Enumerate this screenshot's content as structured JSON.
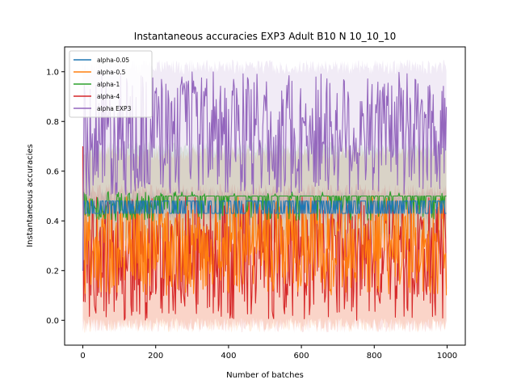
{
  "chart_data": {
    "type": "line",
    "title": "Instantaneous accuracies EXP3 Adult B10 N 10_10_10",
    "xlabel": "Number of batches",
    "ylabel": "Instantaneous accuracies",
    "xlim": [
      -50,
      1050
    ],
    "ylim": [
      -0.1,
      1.1
    ],
    "xticks": [
      0,
      200,
      400,
      600,
      800,
      1000
    ],
    "yticks": [
      0.0,
      0.2,
      0.4,
      0.6,
      0.8,
      1.0
    ],
    "xtick_labels": [
      "0",
      "200",
      "400",
      "600",
      "800",
      "1000"
    ],
    "ytick_labels": [
      "0.0",
      "0.2",
      "0.4",
      "0.6",
      "0.8",
      "1.0"
    ],
    "grid": false,
    "legend_position": "top-left",
    "n_points": 1000,
    "series": [
      {
        "name": "alpha-0.05",
        "color": "#1f77b4",
        "levels": [
          0.43,
          0.48
        ],
        "band": [
          0.38,
          0.53
        ],
        "start": 0.2
      },
      {
        "name": "alpha-0.5",
        "color": "#ff7f0e",
        "levels": [
          0.1,
          0.5
        ],
        "band": [
          -0.05,
          0.7
        ],
        "start": 0.2
      },
      {
        "name": "alpha-1",
        "color": "#2ca02c",
        "levels": [
          0.4,
          0.6
        ],
        "band": [
          0.3,
          0.72
        ],
        "start": 0.2
      },
      {
        "name": "alpha-4",
        "color": "#d62728",
        "levels": [
          0.0,
          0.5
        ],
        "band": [
          -0.05,
          0.55
        ],
        "start": 0.7
      },
      {
        "name": "alpha EXP3",
        "color": "#9467bd",
        "levels": [
          0.5,
          1.0
        ],
        "band": [
          0.4,
          1.05
        ],
        "start": 0.2
      }
    ]
  }
}
